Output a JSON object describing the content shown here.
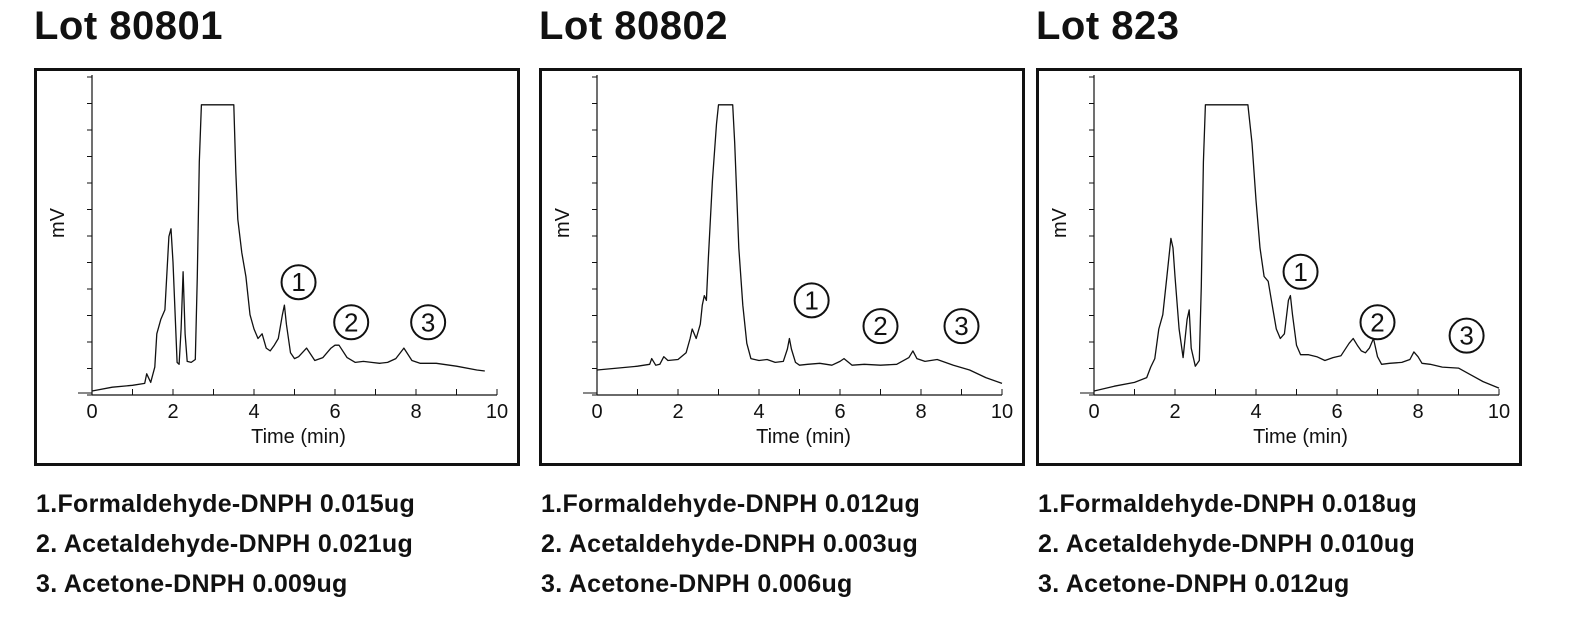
{
  "chart_data": [
    {
      "type": "line",
      "title": "Lot 80801",
      "xlabel": "Time (min)",
      "ylabel": "mV",
      "xlim": [
        0,
        10
      ],
      "x_ticks": [
        "0",
        "2",
        "4",
        "6",
        "8",
        "10"
      ],
      "grid": false,
      "series": [
        {
          "x": [
            0,
            0.5,
            1.0,
            1.3,
            1.35,
            1.45,
            1.55,
            1.6,
            1.7,
            1.8,
            1.9,
            1.95,
            2.0,
            2.1,
            2.15,
            2.2,
            2.25,
            2.3,
            2.35,
            2.45,
            2.55,
            2.6,
            2.65,
            2.7,
            2.75,
            3.5,
            3.55,
            3.6,
            3.7,
            3.8,
            3.9,
            4.0,
            4.1,
            4.2,
            4.3,
            4.4,
            4.5,
            4.6,
            4.7,
            4.75,
            4.8,
            4.9,
            5.0,
            5.1,
            5.3,
            5.5,
            5.7,
            5.9,
            6.0,
            6.1,
            6.3,
            6.5,
            6.7,
            6.9,
            7.1,
            7.3,
            7.5,
            7.7,
            7.9,
            8.1,
            8.5,
            9.0,
            9.5,
            9.7
          ],
          "y": [
            0,
            0.4,
            0.6,
            0.8,
            1.8,
            0.9,
            2.5,
            6.0,
            7.5,
            8.5,
            16.2,
            17.0,
            13.5,
            3.0,
            2.8,
            6.5,
            12.5,
            6.0,
            3.1,
            3.0,
            3.3,
            12.0,
            24.0,
            30.0,
            30.0,
            30.0,
            23.0,
            18.0,
            14.5,
            12.0,
            8.0,
            6.5,
            5.5,
            6.0,
            4.5,
            4.2,
            4.8,
            5.5,
            8.0,
            9.0,
            7.0,
            4.0,
            3.4,
            3.6,
            4.5,
            3.2,
            3.5,
            4.5,
            4.8,
            4.8,
            3.5,
            3.0,
            3.1,
            3.0,
            2.9,
            3.0,
            3.4,
            4.5,
            3.2,
            2.9,
            2.9,
            2.6,
            2.2,
            2.1
          ]
        }
      ],
      "markers": [
        {
          "label": "1",
          "x": 5.1,
          "y": 11.4
        },
        {
          "label": "2",
          "x": 6.4,
          "y": 7.2
        },
        {
          "label": "3",
          "x": 8.3,
          "y": 7.2
        }
      ],
      "legend_items": [
        "1.Formaldehyde-DNPH  0.015ug",
        "2. Acetaldehyde-DNPH 0.021ug",
        "3. Acetone-DNPH 0.009ug"
      ]
    },
    {
      "type": "line",
      "title": "Lot 80802",
      "xlabel": "Time (min)",
      "ylabel": "mV",
      "xlim": [
        0,
        10
      ],
      "x_ticks": [
        "0",
        "2",
        "4",
        "6",
        "8",
        "10"
      ],
      "grid": false,
      "series": [
        {
          "x": [
            0,
            0.5,
            1.0,
            1.3,
            1.35,
            1.45,
            1.55,
            1.65,
            1.75,
            2.0,
            2.2,
            2.3,
            2.35,
            2.45,
            2.55,
            2.6,
            2.65,
            2.7,
            2.75,
            2.85,
            2.95,
            3.0,
            3.05,
            3.2,
            3.35,
            3.4,
            3.5,
            3.6,
            3.7,
            3.8,
            4.0,
            4.2,
            4.4,
            4.6,
            4.7,
            4.75,
            4.8,
            4.9,
            5.0,
            5.2,
            5.5,
            5.8,
            6.0,
            6.1,
            6.3,
            6.6,
            7.0,
            7.4,
            7.7,
            7.8,
            7.9,
            8.1,
            8.4,
            8.8,
            9.2,
            9.6,
            10.0
          ],
          "y": [
            2.2,
            2.4,
            2.6,
            2.8,
            3.4,
            2.7,
            2.8,
            3.6,
            3.2,
            3.3,
            4.0,
            5.5,
            6.5,
            5.5,
            7.0,
            9.0,
            10.0,
            9.5,
            14.0,
            22.0,
            28.0,
            30.0,
            30.0,
            30.0,
            30.0,
            26.0,
            15.0,
            9.0,
            5.0,
            3.4,
            3.2,
            3.3,
            3.0,
            3.1,
            4.4,
            5.5,
            4.4,
            3.0,
            2.7,
            2.8,
            2.9,
            2.7,
            3.1,
            3.4,
            2.7,
            2.8,
            2.7,
            2.8,
            3.5,
            4.2,
            3.4,
            3.1,
            3.3,
            2.7,
            2.2,
            1.4,
            0.8
          ]
        }
      ],
      "markers": [
        {
          "label": "1",
          "x": 5.3,
          "y": 9.5
        },
        {
          "label": "2",
          "x": 7.0,
          "y": 6.8
        },
        {
          "label": "3",
          "x": 9.0,
          "y": 6.8
        }
      ],
      "legend_items": [
        "1.Formaldehyde-DNPH  0.012ug",
        "2. Acetaldehyde-DNPH 0.003ug",
        "3. Acetone-DNPH 0.006ug"
      ]
    },
    {
      "type": "line",
      "title": "Lot 823",
      "xlabel": "Time (min)",
      "ylabel": "mV",
      "xlim": [
        0,
        10
      ],
      "x_ticks": [
        "0",
        "2",
        "4",
        "6",
        "8",
        "10"
      ],
      "grid": false,
      "series": [
        {
          "x": [
            0,
            0.5,
            1.0,
            1.3,
            1.4,
            1.5,
            1.6,
            1.7,
            1.8,
            1.9,
            1.95,
            2.0,
            2.1,
            2.2,
            2.3,
            2.35,
            2.4,
            2.5,
            2.6,
            2.65,
            2.7,
            2.75,
            3.8,
            3.9,
            4.0,
            4.1,
            4.2,
            4.3,
            4.4,
            4.5,
            4.6,
            4.7,
            4.8,
            4.85,
            4.9,
            5.0,
            5.1,
            5.3,
            5.5,
            5.7,
            5.9,
            6.1,
            6.3,
            6.4,
            6.5,
            6.6,
            6.7,
            6.8,
            6.9,
            7.0,
            7.1,
            7.3,
            7.6,
            7.8,
            7.9,
            8.0,
            8.1,
            8.3,
            8.6,
            9.0,
            9.3,
            9.6,
            10.0
          ],
          "y": [
            0,
            0.5,
            0.9,
            1.4,
            2.5,
            3.4,
            6.5,
            8.0,
            12.0,
            16.0,
            15.0,
            12.0,
            6.5,
            3.5,
            7.5,
            8.5,
            4.5,
            2.6,
            3.2,
            11.0,
            24.0,
            30.0,
            30.0,
            26.0,
            20.0,
            15.0,
            12.0,
            11.5,
            9.0,
            6.5,
            5.5,
            6.0,
            9.5,
            10.0,
            8.0,
            4.8,
            3.8,
            3.8,
            3.6,
            3.2,
            3.5,
            3.7,
            5.0,
            5.5,
            4.8,
            4.2,
            4.0,
            4.5,
            5.5,
            3.6,
            2.8,
            2.9,
            3.0,
            3.3,
            4.1,
            3.6,
            2.9,
            2.8,
            2.5,
            2.4,
            1.7,
            1.0,
            0.3
          ]
        }
      ],
      "markers": [
        {
          "label": "1",
          "x": 5.1,
          "y": 12.5
        },
        {
          "label": "2",
          "x": 7.0,
          "y": 7.2
        },
        {
          "label": "3",
          "x": 9.2,
          "y": 5.8
        }
      ],
      "legend_items": [
        "1.Formaldehyde-DNPH  0.018ug",
        "2. Acetaldehyde-DNPH 0.010ug",
        "3. Acetone-DNPH 0.012ug"
      ]
    }
  ]
}
